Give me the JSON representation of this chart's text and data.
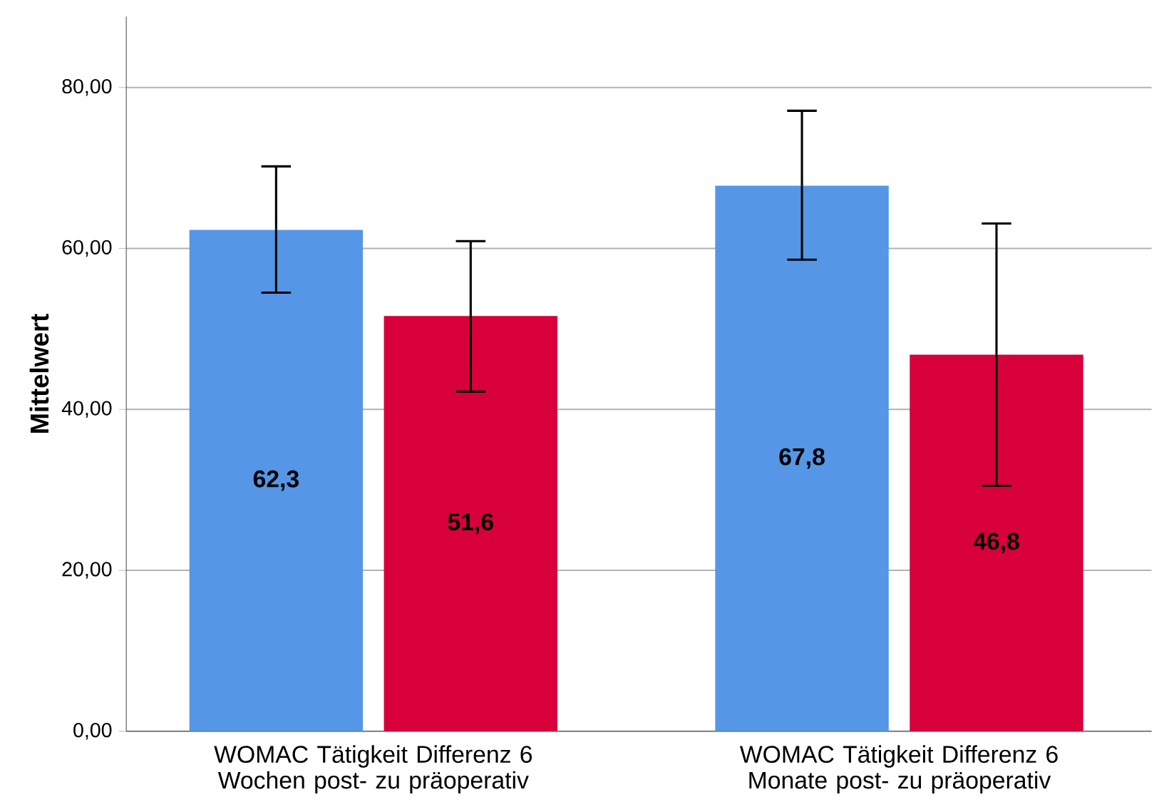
{
  "chart_data": {
    "type": "bar",
    "ylabel": "**Mittelwert**",
    "categories": [
      "WOMAC Tätigkeit Differenz 6 Wochen post- zu präoperativ",
      "WOMAC Tätigkeit Differenz 6 Monate post- zu präoperativ"
    ],
    "series": [
      {
        "color": "#5596e6",
        "values": [
          62.3,
          67.8
        ],
        "value_labels": [
          "62,3",
          "67,8"
        ],
        "errors": [
          [
            54.5,
            70.2
          ],
          [
            58.6,
            77.1
          ]
        ]
      },
      {
        "color": "#d7003a",
        "values": [
          51.6,
          46.8
        ],
        "value_labels": [
          "51,6",
          "46,8"
        ],
        "errors": [
          [
            42.2,
            60.9
          ],
          [
            30.5,
            63.1
          ]
        ]
      }
    ],
    "ylim": [
      0,
      88.8
    ],
    "yticks": [
      {
        "value": 0,
        "label": "0,00"
      },
      {
        "value": 20,
        "label": "20,00"
      },
      {
        "value": 40,
        "label": "40,00"
      },
      {
        "value": 60,
        "label": "60,00"
      },
      {
        "value": 80,
        "label": "80,00"
      }
    ],
    "grid": "y"
  }
}
